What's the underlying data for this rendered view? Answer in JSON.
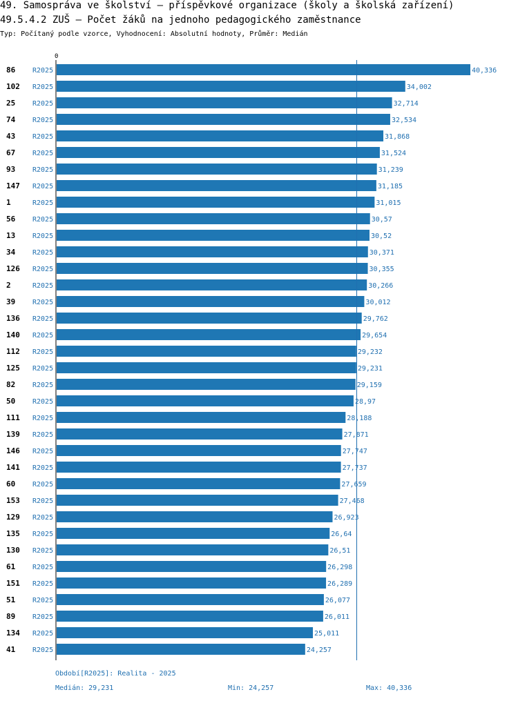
{
  "header": {
    "title1": "49. Samospráva ve školství – příspěvkové organizace (školy a školská zařízení)",
    "title2": "49.5.4.2 ZUŠ – Počet žáků na jednoho pedagogického zaměstnance",
    "subtitle": "Typ: Počítaný podle vzorce, Vyhodnocení: Absolutní hodnoty, Průměr: Medián"
  },
  "colors": {
    "bar": "#1f77b4",
    "value_label": "#1f6fb0",
    "series_label": "#1f6fb0",
    "median_line": "#1f6fb0"
  },
  "chart_data": {
    "type": "bar",
    "orientation": "horizontal",
    "title": "49.5.4.2 ZUŠ – Počet žáků na jednoho pedagogického zaměstnance",
    "axis_zero_label": "0",
    "xlim": [
      0,
      40.336
    ],
    "median": 29.231,
    "series_label": "R2025",
    "categories": [
      "86",
      "102",
      "25",
      "74",
      "43",
      "67",
      "93",
      "147",
      "1",
      "56",
      "13",
      "34",
      "126",
      "2",
      "39",
      "136",
      "140",
      "112",
      "125",
      "82",
      "50",
      "111",
      "139",
      "146",
      "141",
      "60",
      "153",
      "129",
      "135",
      "130",
      "61",
      "151",
      "51",
      "89",
      "134",
      "41"
    ],
    "values": [
      40.336,
      34.002,
      32.714,
      32.534,
      31.868,
      31.524,
      31.239,
      31.185,
      31.015,
      30.57,
      30.52,
      30.371,
      30.355,
      30.266,
      30.012,
      29.762,
      29.654,
      29.232,
      29.231,
      29.159,
      28.97,
      28.188,
      27.871,
      27.747,
      27.737,
      27.659,
      27.468,
      26.923,
      26.64,
      26.51,
      26.298,
      26.289,
      26.077,
      26.011,
      25.011,
      24.257
    ],
    "value_labels": [
      "40,336",
      "34,002",
      "32,714",
      "32,534",
      "31,868",
      "31,524",
      "31,239",
      "31,185",
      "31,015",
      "30,57",
      "30,52",
      "30,371",
      "30,355",
      "30,266",
      "30,012",
      "29,762",
      "29,654",
      "29,232",
      "29,231",
      "29,159",
      "28,97",
      "28,188",
      "27,871",
      "27,747",
      "27,737",
      "27,659",
      "27,468",
      "26,923",
      "26,64",
      "26,51",
      "26,298",
      "26,289",
      "26,077",
      "26,011",
      "25,011",
      "24,257"
    ]
  },
  "footer": {
    "period": "Období[R2025]: Realita - 2025",
    "median": "Medián: 29,231",
    "min": "Min: 24,257",
    "max": "Max: 40,336"
  }
}
